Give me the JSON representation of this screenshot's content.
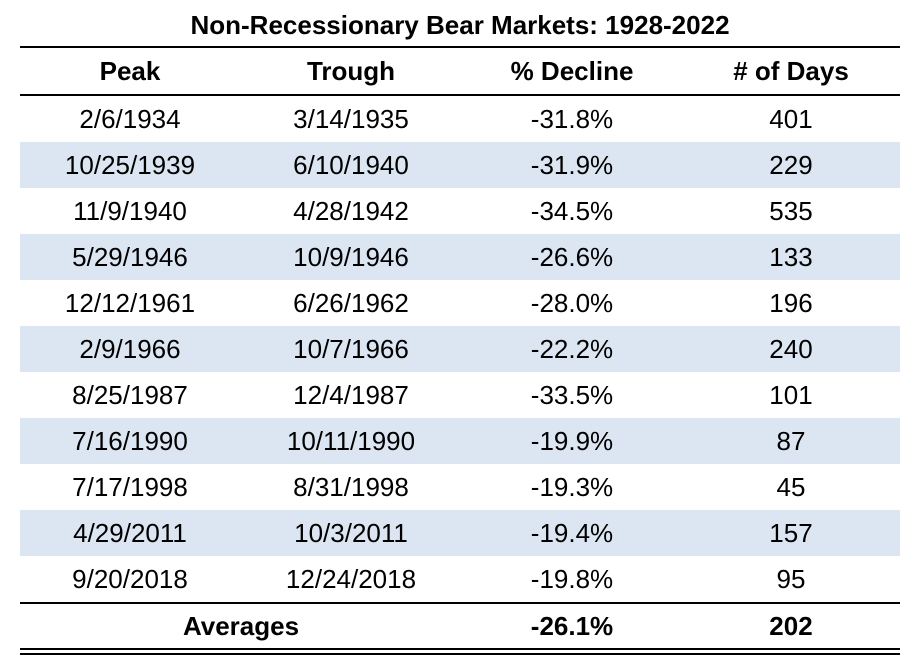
{
  "title": "Non-Recessionary Bear Markets: 1928-2022",
  "headers": {
    "peak": "Peak",
    "trough": "Trough",
    "decline": "% Decline",
    "days": "# of Days"
  },
  "rows": [
    {
      "peak": "2/6/1934",
      "trough": "3/14/1935",
      "decline": "-31.8%",
      "days": "401"
    },
    {
      "peak": "10/25/1939",
      "trough": "6/10/1940",
      "decline": "-31.9%",
      "days": "229"
    },
    {
      "peak": "11/9/1940",
      "trough": "4/28/1942",
      "decline": "-34.5%",
      "days": "535"
    },
    {
      "peak": "5/29/1946",
      "trough": "10/9/1946",
      "decline": "-26.6%",
      "days": "133"
    },
    {
      "peak": "12/12/1961",
      "trough": "6/26/1962",
      "decline": "-28.0%",
      "days": "196"
    },
    {
      "peak": "2/9/1966",
      "trough": "10/7/1966",
      "decline": "-22.2%",
      "days": "240"
    },
    {
      "peak": "8/25/1987",
      "trough": "12/4/1987",
      "decline": "-33.5%",
      "days": "101"
    },
    {
      "peak": "7/16/1990",
      "trough": "10/11/1990",
      "decline": "-19.9%",
      "days": "87"
    },
    {
      "peak": "7/17/1998",
      "trough": "8/31/1998",
      "decline": "-19.3%",
      "days": "45"
    },
    {
      "peak": "4/29/2011",
      "trough": "10/3/2011",
      "decline": "-19.4%",
      "days": "157"
    },
    {
      "peak": "9/20/2018",
      "trough": "12/24/2018",
      "decline": "-19.8%",
      "days": "95"
    }
  ],
  "averages": {
    "label": "Averages",
    "decline": "-26.1%",
    "days": "202"
  },
  "colors": {
    "band": "#dce6f2",
    "rule": "#000000"
  }
}
